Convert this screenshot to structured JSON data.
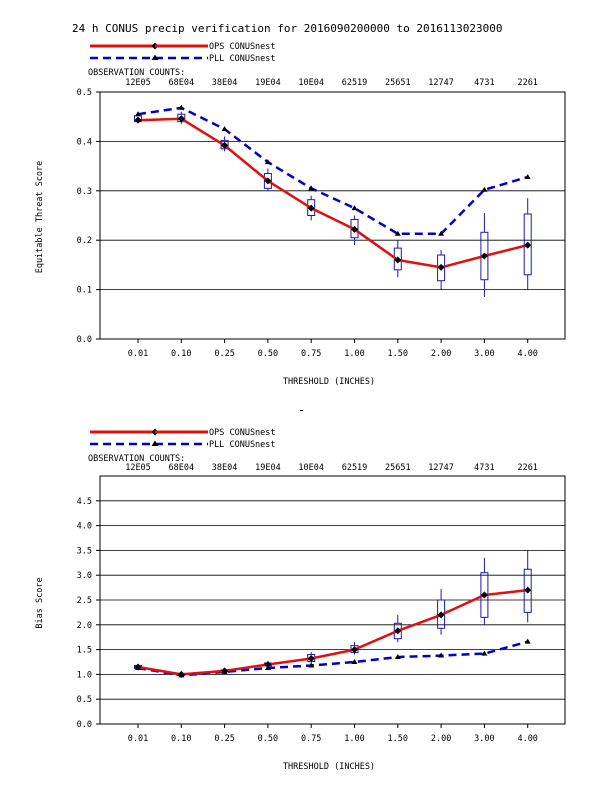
{
  "title": "24 h CONUS precip verification for 2016090200000 to 2016113023000",
  "obs_label": "OBSERVATION COUNTS:",
  "obs_counts": [
    "12E05",
    "68E04",
    "38E04",
    "19E04",
    "10E04",
    "62519",
    "25651",
    "12747",
    "4731",
    "2261"
  ],
  "separator": "-",
  "legend": [
    {
      "label": "OPS CONUSnest",
      "color": "#e01010",
      "style": "solid",
      "marker": "diamond"
    },
    {
      "label": "PLL CONUSnest",
      "color": "#0000cc",
      "style": "dashed",
      "marker": "triangle"
    }
  ],
  "colors": {
    "ops": "#e01010",
    "pll": "#0000cc",
    "box": "#1a1ab0"
  },
  "chart_data": [
    {
      "type": "line",
      "ylabel": "Equitable Threat Score",
      "xlabel": "THRESHOLD (INCHES)",
      "categories": [
        "0.01",
        "0.10",
        "0.25",
        "0.50",
        "0.75",
        "1.00",
        "1.50",
        "2.00",
        "3.00",
        "4.00"
      ],
      "ylim": [
        0,
        0.5
      ],
      "yticks": [
        0.0,
        0.1,
        0.2,
        0.3,
        0.4,
        0.5
      ],
      "ytick_labels": [
        "0.0",
        "0.1",
        "0.2",
        "0.3",
        "0.4",
        "0.5"
      ],
      "grid": true,
      "series": [
        {
          "name": "OPS CONUSnest",
          "values": [
            0.443,
            0.446,
            0.392,
            0.32,
            0.265,
            0.222,
            0.16,
            0.145,
            0.168,
            0.19
          ]
        },
        {
          "name": "PLL CONUSnest",
          "values": [
            0.455,
            0.468,
            0.425,
            0.358,
            0.305,
            0.265,
            0.213,
            0.213,
            0.302,
            0.328
          ]
        }
      ],
      "boxes": [
        {
          "low": 0.437,
          "q1": 0.44,
          "q3": 0.452,
          "high": 0.457
        },
        {
          "low": 0.435,
          "q1": 0.44,
          "q3": 0.455,
          "high": 0.46
        },
        {
          "low": 0.38,
          "q1": 0.385,
          "q3": 0.402,
          "high": 0.41
        },
        {
          "low": 0.3,
          "q1": 0.305,
          "q3": 0.335,
          "high": 0.345
        },
        {
          "low": 0.24,
          "q1": 0.25,
          "q3": 0.282,
          "high": 0.29
        },
        {
          "low": 0.19,
          "q1": 0.205,
          "q3": 0.242,
          "high": 0.25
        },
        {
          "low": 0.125,
          "q1": 0.14,
          "q3": 0.184,
          "high": 0.2
        },
        {
          "low": 0.1,
          "q1": 0.118,
          "q3": 0.17,
          "high": 0.18
        },
        {
          "low": 0.085,
          "q1": 0.12,
          "q3": 0.216,
          "high": 0.255
        },
        {
          "low": 0.1,
          "q1": 0.13,
          "q3": 0.253,
          "high": 0.285
        }
      ]
    },
    {
      "type": "line",
      "ylabel": "Bias Score",
      "xlabel": "THRESHOLD (INCHES)",
      "categories": [
        "0.01",
        "0.10",
        "0.25",
        "0.50",
        "0.75",
        "1.00",
        "1.50",
        "2.00",
        "3.00",
        "4.00"
      ],
      "ylim": [
        0,
        5
      ],
      "yticks": [
        0.0,
        0.5,
        1.0,
        1.5,
        2.0,
        2.5,
        3.0,
        3.5,
        4.0,
        4.5
      ],
      "ytick_labels": [
        "0.0",
        "0.5",
        "1.0",
        "1.5",
        "2.0",
        "2.5",
        "3.0",
        "3.5",
        "4.0",
        "4.5"
      ],
      "grid": true,
      "series": [
        {
          "name": "OPS CONUSnest",
          "values": [
            1.15,
            1.0,
            1.07,
            1.2,
            1.32,
            1.5,
            1.88,
            2.2,
            2.6,
            2.7
          ]
        },
        {
          "name": "PLL CONUSnest",
          "values": [
            1.13,
            0.98,
            1.05,
            1.13,
            1.18,
            1.25,
            1.35,
            1.38,
            1.42,
            1.66
          ]
        }
      ],
      "boxes": [
        {
          "low": 1.1,
          "q1": 1.12,
          "q3": 1.18,
          "high": 1.2
        },
        {
          "low": 0.96,
          "q1": 0.98,
          "q3": 1.02,
          "high": 1.04
        },
        {
          "low": 1.03,
          "q1": 1.05,
          "q3": 1.09,
          "high": 1.11
        },
        {
          "low": 1.15,
          "q1": 1.17,
          "q3": 1.23,
          "high": 1.26
        },
        {
          "low": 1.22,
          "q1": 1.26,
          "q3": 1.4,
          "high": 1.45
        },
        {
          "low": 1.4,
          "q1": 1.44,
          "q3": 1.58,
          "high": 1.65
        },
        {
          "low": 1.65,
          "q1": 1.72,
          "q3": 2.03,
          "high": 2.2
        },
        {
          "low": 1.8,
          "q1": 1.93,
          "q3": 2.5,
          "high": 2.72
        },
        {
          "low": 2.0,
          "q1": 2.15,
          "q3": 3.05,
          "high": 3.35
        },
        {
          "low": 2.05,
          "q1": 2.25,
          "q3": 3.12,
          "high": 3.5
        }
      ]
    }
  ]
}
